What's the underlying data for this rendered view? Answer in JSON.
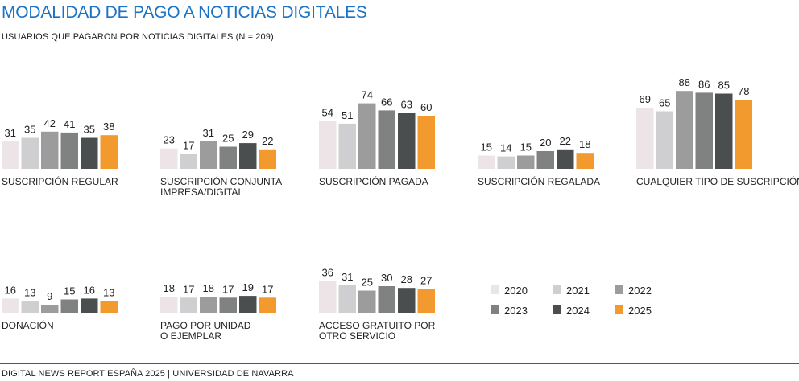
{
  "title": "MODALIDAD DE PAGO A NOTICIAS DIGITALES",
  "subtitle": "USUARIOS QUE PAGARON POR NOTICIAS DIGITALES (N = 209)",
  "footer": "DIGITAL NEWS REPORT ESPAÑA 2025 | UNIVERSIDAD DE NAVARRA",
  "colors": {
    "2020": "#ece4e6",
    "2021": "#cfcfd1",
    "2022": "#9c9c9c",
    "2023": "#808282",
    "2024": "#4b4e4e",
    "2025": "#f29a2e"
  },
  "chart_data": {
    "type": "bar",
    "series_names": [
      "2020",
      "2021",
      "2022",
      "2023",
      "2024",
      "2025"
    ],
    "groups": [
      {
        "label": [
          "SUSCRIPCIÓN REGULAR"
        ],
        "values": [
          31,
          35,
          42,
          41,
          35,
          38
        ]
      },
      {
        "label": [
          "SUSCRIPCIÓN CONJUNTA",
          "IMPRESA/DIGITAL"
        ],
        "values": [
          23,
          17,
          31,
          25,
          29,
          22
        ]
      },
      {
        "label": [
          "SUSCRIPCIÓN PAGADA"
        ],
        "values": [
          54,
          51,
          74,
          66,
          63,
          60
        ]
      },
      {
        "label": [
          "SUSCRIPCIÓN REGALADA"
        ],
        "values": [
          15,
          14,
          15,
          20,
          22,
          18
        ]
      },
      {
        "label": [
          "CUALQUIER TIPO DE SUSCRIPCIÓN"
        ],
        "values": [
          69,
          65,
          88,
          86,
          85,
          78
        ]
      },
      {
        "label": [
          "DONACIÓN"
        ],
        "values": [
          16,
          13,
          9,
          15,
          16,
          13
        ]
      },
      {
        "label": [
          "PAGO POR UNIDAD",
          "O EJEMPLAR"
        ],
        "values": [
          18,
          17,
          18,
          17,
          19,
          17
        ]
      },
      {
        "label": [
          "ACCESO GRATUITO POR",
          "OTRO SERVICIO"
        ],
        "values": [
          36,
          31,
          25,
          30,
          28,
          27
        ]
      }
    ],
    "legend": [
      "2020",
      "2021",
      "2022",
      "2023",
      "2024",
      "2025"
    ],
    "legend_position": "bottom-right"
  }
}
